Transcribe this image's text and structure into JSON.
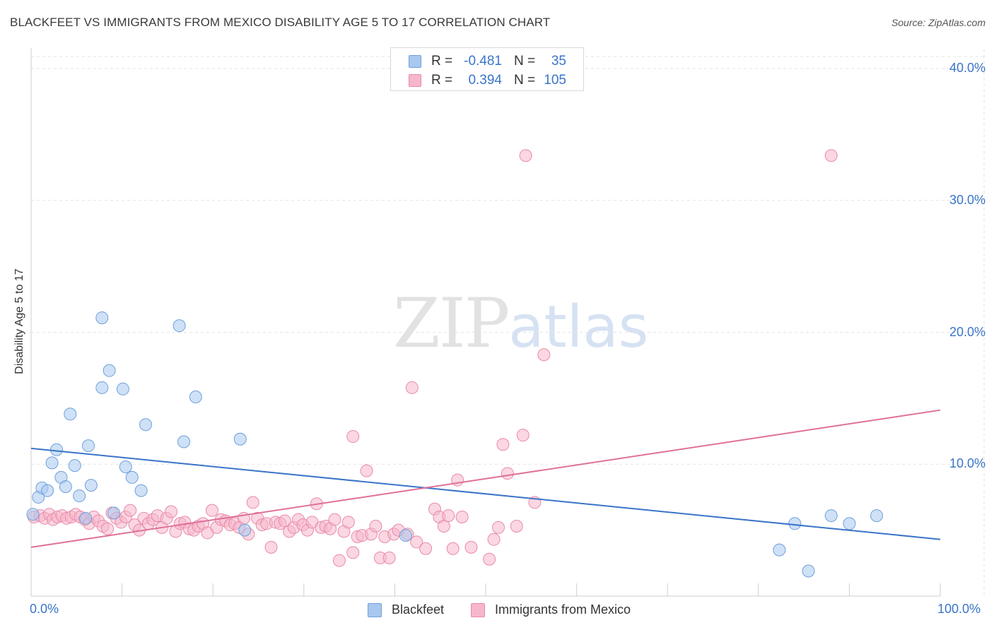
{
  "header": {
    "title": "BLACKFEET VS IMMIGRANTS FROM MEXICO DISABILITY AGE 5 TO 17 CORRELATION CHART",
    "source": "Source: ZipAtlas.com"
  },
  "watermark": {
    "zip": "ZIP",
    "atlas": "atlas"
  },
  "legend_top": {
    "rows": [
      {
        "r_label": "R =",
        "r_value": "-0.481",
        "n_label": "N =",
        "n_value": "35"
      },
      {
        "r_label": "R =",
        "r_value": "0.394",
        "n_label": "N =",
        "n_value": "105"
      }
    ]
  },
  "legend_bottom": {
    "items": [
      {
        "label": "Blackfeet"
      },
      {
        "label": "Immigrants from Mexico"
      }
    ]
  },
  "colors": {
    "blackfeet_fill": "#a8c8ef",
    "blackfeet_stroke": "#6f9fdc",
    "blackfeet_line": "#3a74c8",
    "mexico_fill": "#f6b6cb",
    "mexico_stroke": "#e98aa9",
    "mexico_line": "#e0709a",
    "tick_text": "#3a74c8",
    "grid": "#e3e3e3"
  },
  "chart_data": {
    "type": "scatter",
    "title": "BLACKFEET VS IMMIGRANTS FROM MEXICO DISABILITY AGE 5 TO 17 CORRELATION CHART",
    "xlabel": "",
    "ylabel": "Disability Age 5 to 17",
    "xlim": [
      0,
      100
    ],
    "ylim": [
      0,
      40
    ],
    "x_tick_labels": [
      "0.0%",
      "100.0%"
    ],
    "y_ticks": [
      10,
      20,
      30,
      40
    ],
    "y_tick_labels": [
      "10.0%",
      "20.0%",
      "30.0%",
      "40.0%"
    ],
    "grid": true,
    "legend_position": "top-center",
    "series": [
      {
        "name": "Blackfeet",
        "r": -0.481,
        "n": 35,
        "trend": {
          "x": [
            0,
            100
          ],
          "y": [
            11.2,
            4.3
          ]
        },
        "points": [
          [
            0.2,
            6.2
          ],
          [
            0.8,
            7.5
          ],
          [
            1.2,
            8.2
          ],
          [
            1.8,
            8.0
          ],
          [
            2.3,
            10.1
          ],
          [
            2.8,
            11.1
          ],
          [
            3.3,
            9.0
          ],
          [
            3.8,
            8.3
          ],
          [
            4.3,
            13.8
          ],
          [
            4.8,
            9.9
          ],
          [
            5.3,
            7.6
          ],
          [
            6.3,
            11.4
          ],
          [
            6.6,
            8.4
          ],
          [
            7.8,
            15.8
          ],
          [
            7.8,
            21.1
          ],
          [
            8.6,
            17.1
          ],
          [
            9.1,
            6.3
          ],
          [
            10.1,
            15.7
          ],
          [
            10.4,
            9.8
          ],
          [
            11.1,
            9.0
          ],
          [
            12.1,
            8.0
          ],
          [
            12.6,
            13.0
          ],
          [
            16.3,
            20.5
          ],
          [
            16.8,
            11.7
          ],
          [
            18.1,
            15.1
          ],
          [
            23.0,
            11.9
          ],
          [
            23.5,
            5.0
          ],
          [
            41.2,
            4.6
          ],
          [
            84.0,
            5.5
          ],
          [
            82.3,
            3.5
          ],
          [
            85.5,
            1.9
          ],
          [
            88.0,
            6.1
          ],
          [
            90.0,
            5.5
          ],
          [
            93.0,
            6.1
          ],
          [
            6.0,
            5.9
          ]
        ]
      },
      {
        "name": "Immigrants from Mexico",
        "r": 0.394,
        "n": 105,
        "trend": {
          "x": [
            0,
            100
          ],
          "y": [
            3.7,
            14.1
          ]
        },
        "points": [
          [
            0.3,
            6.0
          ],
          [
            1.0,
            6.1
          ],
          [
            1.5,
            5.9
          ],
          [
            2.0,
            6.2
          ],
          [
            2.4,
            5.8
          ],
          [
            2.9,
            6.0
          ],
          [
            3.4,
            6.1
          ],
          [
            3.9,
            5.9
          ],
          [
            4.4,
            6.0
          ],
          [
            4.9,
            6.2
          ],
          [
            5.4,
            6.0
          ],
          [
            5.9,
            5.8
          ],
          [
            6.4,
            5.5
          ],
          [
            6.9,
            6.0
          ],
          [
            7.4,
            5.7
          ],
          [
            7.9,
            5.3
          ],
          [
            8.4,
            5.1
          ],
          [
            8.9,
            6.3
          ],
          [
            9.4,
            5.9
          ],
          [
            9.9,
            5.6
          ],
          [
            10.4,
            6.0
          ],
          [
            10.9,
            6.5
          ],
          [
            11.4,
            5.4
          ],
          [
            11.9,
            5.0
          ],
          [
            12.4,
            5.9
          ],
          [
            12.9,
            5.5
          ],
          [
            13.4,
            5.8
          ],
          [
            13.9,
            6.1
          ],
          [
            14.4,
            5.2
          ],
          [
            14.9,
            5.9
          ],
          [
            15.4,
            6.4
          ],
          [
            15.9,
            4.9
          ],
          [
            16.4,
            5.5
          ],
          [
            16.9,
            5.6
          ],
          [
            17.4,
            5.1
          ],
          [
            17.9,
            5.0
          ],
          [
            18.4,
            5.3
          ],
          [
            18.9,
            5.5
          ],
          [
            19.4,
            4.8
          ],
          [
            19.9,
            6.5
          ],
          [
            20.4,
            5.2
          ],
          [
            20.9,
            5.8
          ],
          [
            21.4,
            5.7
          ],
          [
            21.9,
            5.4
          ],
          [
            22.4,
            5.5
          ],
          [
            22.9,
            5.2
          ],
          [
            23.4,
            5.9
          ],
          [
            23.9,
            4.7
          ],
          [
            24.4,
            7.1
          ],
          [
            24.9,
            5.9
          ],
          [
            25.4,
            5.4
          ],
          [
            25.9,
            5.5
          ],
          [
            26.4,
            3.7
          ],
          [
            26.9,
            5.6
          ],
          [
            27.4,
            5.5
          ],
          [
            27.9,
            5.7
          ],
          [
            28.4,
            4.9
          ],
          [
            28.9,
            5.2
          ],
          [
            29.4,
            5.8
          ],
          [
            29.9,
            5.4
          ],
          [
            30.4,
            5.0
          ],
          [
            30.9,
            5.6
          ],
          [
            31.4,
            7.0
          ],
          [
            31.9,
            5.2
          ],
          [
            32.4,
            5.3
          ],
          [
            32.9,
            5.1
          ],
          [
            33.4,
            5.8
          ],
          [
            33.9,
            2.7
          ],
          [
            34.4,
            4.9
          ],
          [
            34.9,
            5.6
          ],
          [
            35.4,
            3.3
          ],
          [
            35.9,
            4.5
          ],
          [
            36.4,
            4.6
          ],
          [
            36.9,
            9.5
          ],
          [
            37.4,
            4.7
          ],
          [
            37.9,
            5.3
          ],
          [
            38.4,
            2.9
          ],
          [
            38.9,
            4.5
          ],
          [
            39.4,
            2.9
          ],
          [
            39.9,
            4.7
          ],
          [
            40.4,
            5.0
          ],
          [
            41.4,
            4.7
          ],
          [
            41.9,
            15.8
          ],
          [
            42.4,
            4.1
          ],
          [
            43.4,
            3.6
          ],
          [
            44.4,
            6.6
          ],
          [
            44.9,
            6.0
          ],
          [
            45.4,
            5.3
          ],
          [
            45.9,
            6.1
          ],
          [
            46.4,
            3.6
          ],
          [
            46.9,
            8.8
          ],
          [
            47.4,
            6.0
          ],
          [
            48.4,
            3.7
          ],
          [
            50.4,
            2.8
          ],
          [
            50.9,
            4.3
          ],
          [
            51.4,
            5.2
          ],
          [
            51.9,
            11.5
          ],
          [
            52.4,
            9.3
          ],
          [
            53.4,
            5.3
          ],
          [
            54.1,
            12.2
          ],
          [
            54.4,
            33.4
          ],
          [
            55.4,
            7.1
          ],
          [
            56.4,
            18.3
          ],
          [
            88.0,
            33.4
          ],
          [
            35.4,
            12.1
          ]
        ]
      }
    ]
  }
}
